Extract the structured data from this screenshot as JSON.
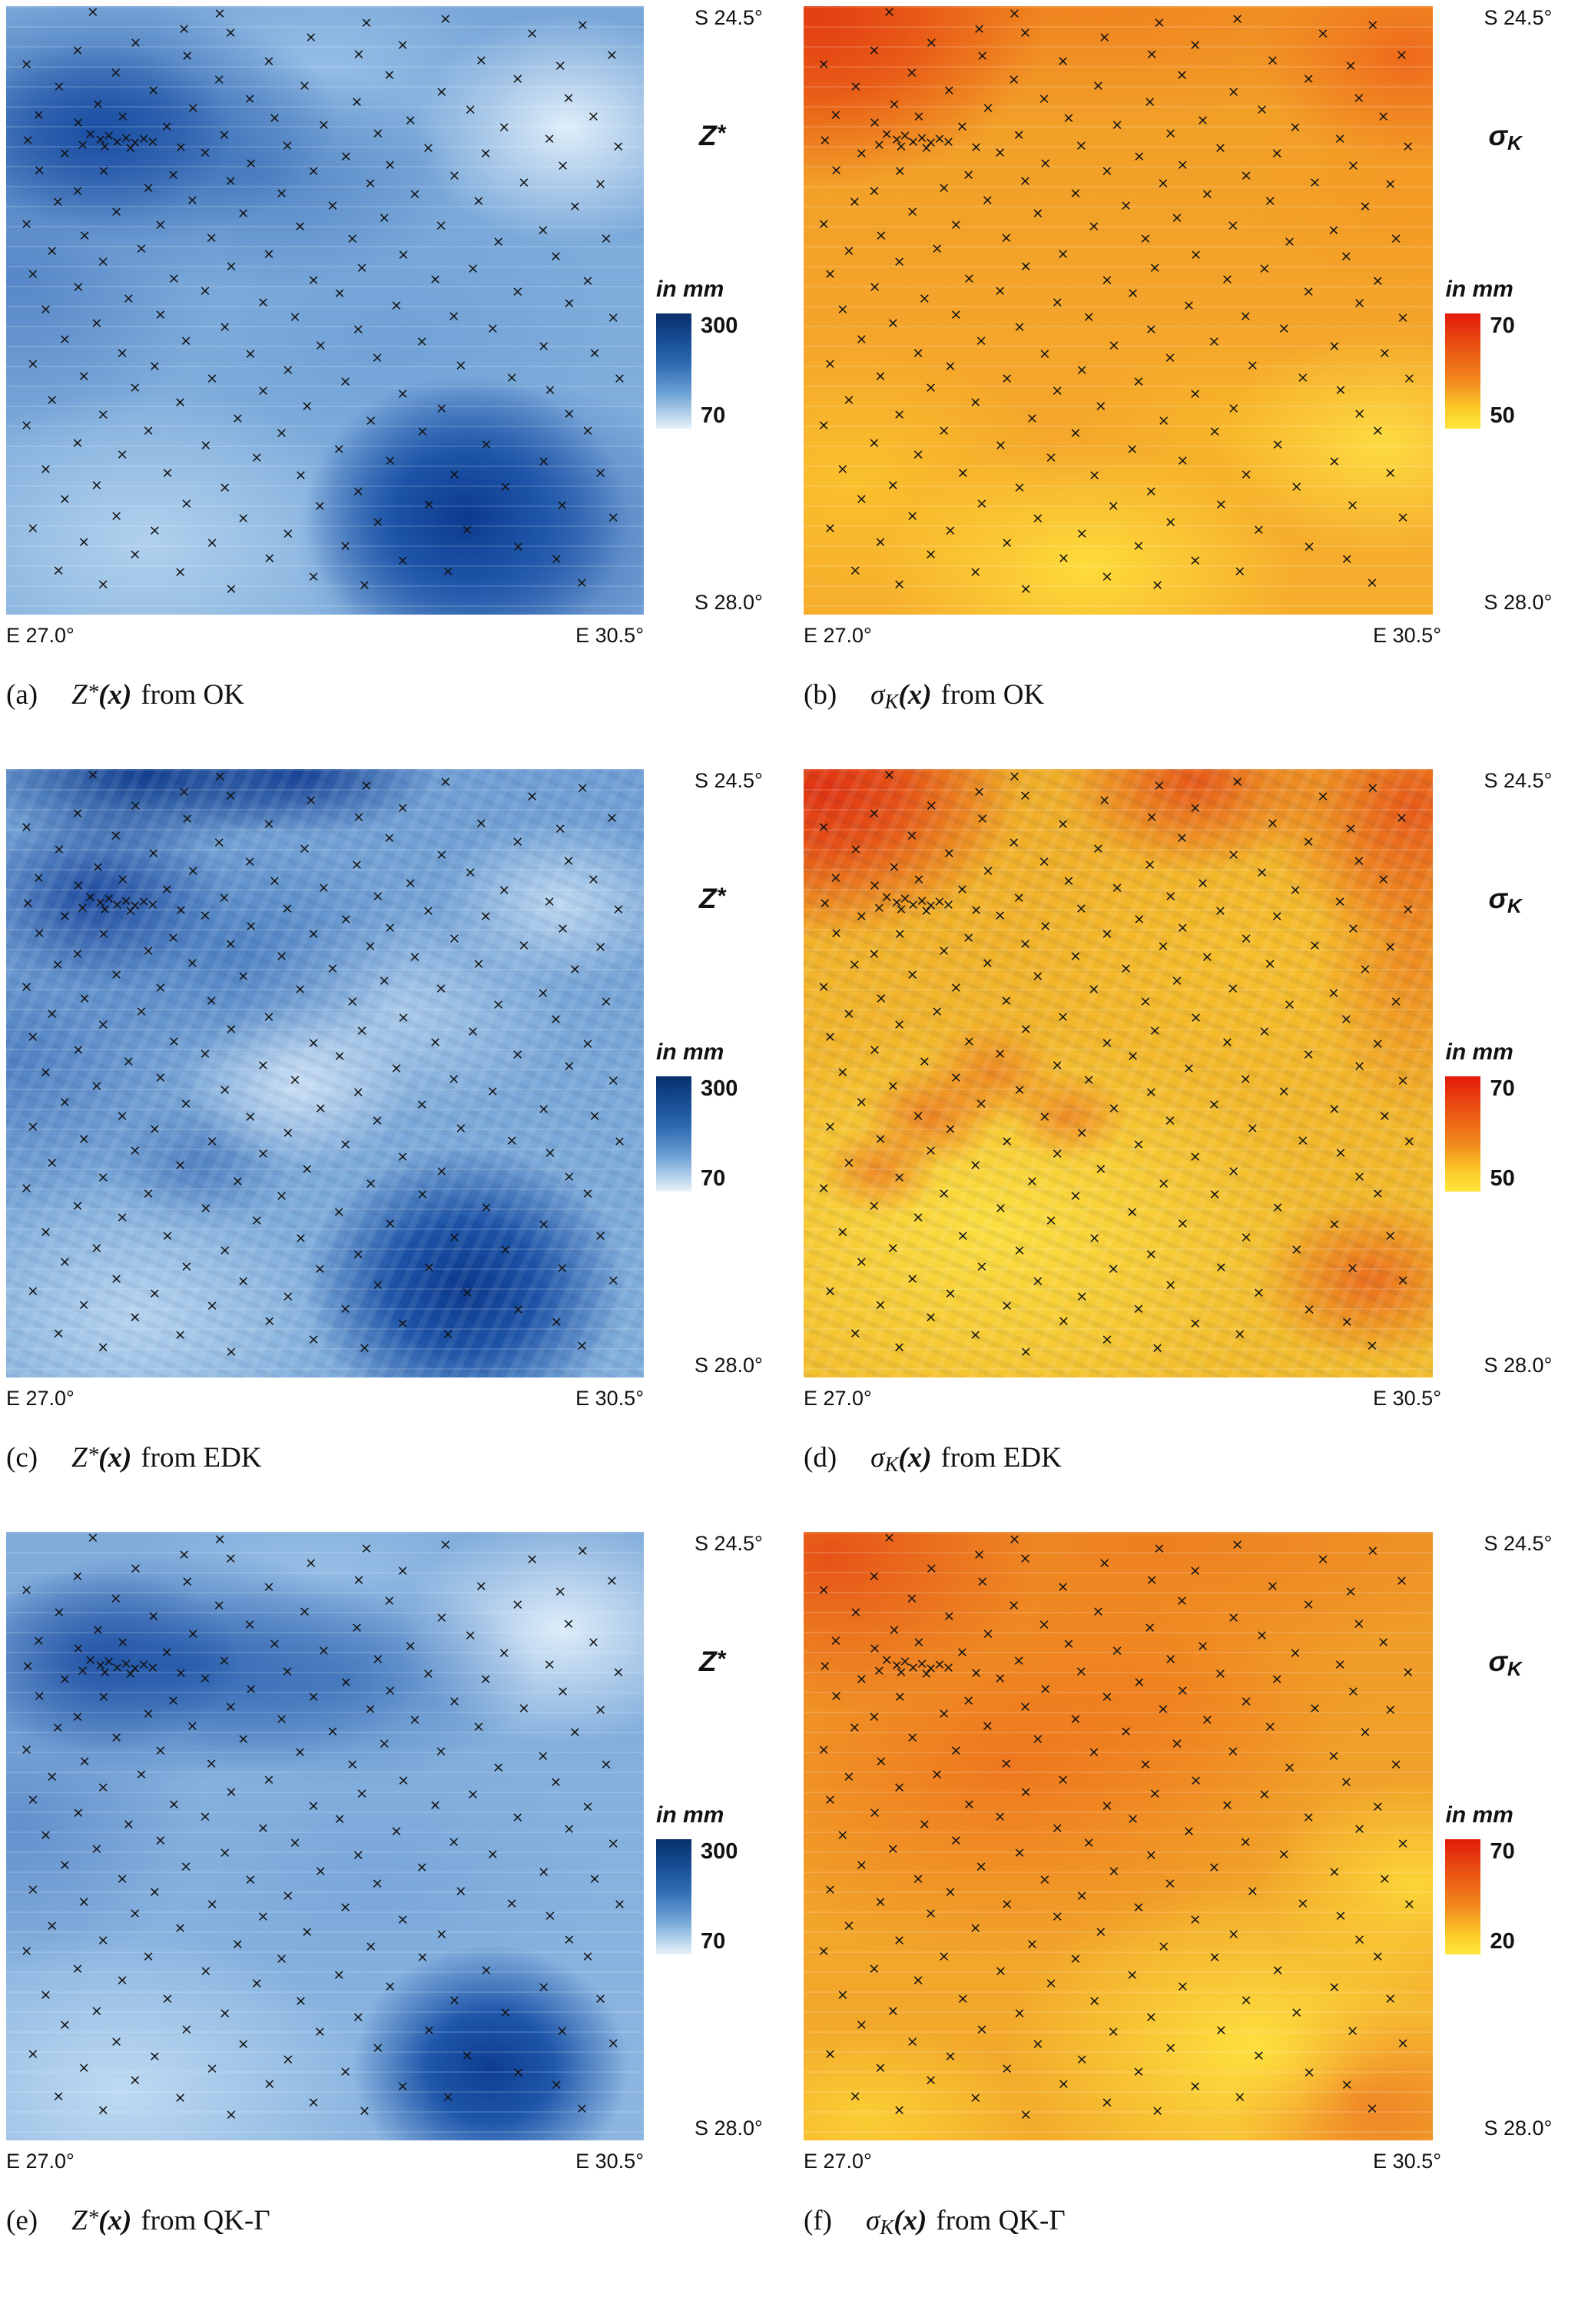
{
  "figure": {
    "panels": [
      {
        "id": "a",
        "lat_top": "S 24.5°",
        "lat_bottom": "S 28.0°",
        "lon_left": "E 27.0°",
        "lon_right": "E 30.5°",
        "field": {
          "base": "Z",
          "sup": "*",
          "sub": ""
        },
        "units": "in mm",
        "cbar_top": "300",
        "cbar_bottom": "70",
        "caption": {
          "index": "(a)",
          "base": "Z",
          "sup": "*",
          "sub": "",
          "arg": "(x)",
          "rest": "from OK"
        }
      },
      {
        "id": "b",
        "lat_top": "S 24.5°",
        "lat_bottom": "S 28.0°",
        "lon_left": "E 27.0°",
        "lon_right": "E 30.5°",
        "field": {
          "base": "σ",
          "sup": "",
          "sub": "K"
        },
        "units": "in mm",
        "cbar_top": "70",
        "cbar_bottom": "50",
        "caption": {
          "index": "(b)",
          "base": "σ",
          "sup": "",
          "sub": "K",
          "arg": "(x)",
          "rest": "from OK"
        }
      },
      {
        "id": "c",
        "lat_top": "S 24.5°",
        "lat_bottom": "S 28.0°",
        "lon_left": "E 27.0°",
        "lon_right": "E 30.5°",
        "field": {
          "base": "Z",
          "sup": "*",
          "sub": ""
        },
        "units": "in mm",
        "cbar_top": "300",
        "cbar_bottom": "70",
        "caption": {
          "index": "(c)",
          "base": "Z",
          "sup": "*",
          "sub": "",
          "arg": "(x)",
          "rest": "from EDK"
        }
      },
      {
        "id": "d",
        "lat_top": "S 24.5°",
        "lat_bottom": "S 28.0°",
        "lon_left": "E 27.0°",
        "lon_right": "E 30.5°",
        "field": {
          "base": "σ",
          "sup": "",
          "sub": "K"
        },
        "units": "in mm",
        "cbar_top": "70",
        "cbar_bottom": "50",
        "caption": {
          "index": "(d)",
          "base": "σ",
          "sup": "",
          "sub": "K",
          "arg": "(x)",
          "rest": "from EDK"
        }
      },
      {
        "id": "e",
        "lat_top": "S 24.5°",
        "lat_bottom": "S 28.0°",
        "lon_left": "E 27.0°",
        "lon_right": "E 30.5°",
        "field": {
          "base": "Z",
          "sup": "*",
          "sub": ""
        },
        "units": "in mm",
        "cbar_top": "300",
        "cbar_bottom": "70",
        "caption": {
          "index": "(e)",
          "base": "Z",
          "sup": "*",
          "sub": "",
          "arg": "(x)",
          "rest": "from QK-Γ"
        }
      },
      {
        "id": "f",
        "lat_top": "S 24.5°",
        "lat_bottom": "S 28.0°",
        "lon_left": "E 27.0°",
        "lon_right": "E 30.5°",
        "field": {
          "base": "σ",
          "sup": "",
          "sub": "K"
        },
        "units": "in mm",
        "cbar_top": "70",
        "cbar_bottom": "20",
        "caption": {
          "index": "(f)",
          "base": "σ",
          "sup": "",
          "sub": "K",
          "arg": "(x)",
          "rest": "from QK-Γ"
        }
      }
    ],
    "markers": [
      [
        13.6,
        1.0
      ],
      [
        33.5,
        1.2
      ],
      [
        56.5,
        2.8
      ],
      [
        68.9,
        2.2
      ],
      [
        82.5,
        4.6
      ],
      [
        27.9,
        3.8
      ],
      [
        35.2,
        4.4
      ],
      [
        47.8,
        5.2
      ],
      [
        20.3,
        6.1
      ],
      [
        62.2,
        6.4
      ],
      [
        90.4,
        3.2
      ],
      [
        11.2,
        7.3
      ],
      [
        28.4,
        8.2
      ],
      [
        55.3,
        8.0
      ],
      [
        41.2,
        9.1
      ],
      [
        74.5,
        9.0
      ],
      [
        95.0,
        8.1
      ],
      [
        3.2,
        9.6
      ],
      [
        86.9,
        9.9
      ],
      [
        17.2,
        11.0
      ],
      [
        33.4,
        12.1
      ],
      [
        60.1,
        11.4
      ],
      [
        80.2,
        12.0
      ],
      [
        8.3,
        13.2
      ],
      [
        23.1,
        13.9
      ],
      [
        46.8,
        13.1
      ],
      [
        68.3,
        14.2
      ],
      [
        38.2,
        15.3
      ],
      [
        55.0,
        15.8
      ],
      [
        88.2,
        15.1
      ],
      [
        14.4,
        16.2
      ],
      [
        29.3,
        16.8
      ],
      [
        72.8,
        17.1
      ],
      [
        5.1,
        17.9
      ],
      [
        18.3,
        18.2
      ],
      [
        42.1,
        18.4
      ],
      [
        63.4,
        18.8
      ],
      [
        92.1,
        18.2
      ],
      [
        11.3,
        19.2
      ],
      [
        25.2,
        19.8
      ],
      [
        49.8,
        19.6
      ],
      [
        78.1,
        19.9
      ],
      [
        13.2,
        21.1
      ],
      [
        14.8,
        22.0
      ],
      [
        16.1,
        21.4
      ],
      [
        17.4,
        22.3
      ],
      [
        18.8,
        21.7
      ],
      [
        20.2,
        22.5
      ],
      [
        21.6,
        21.9
      ],
      [
        23.0,
        22.4
      ],
      [
        15.5,
        23.1
      ],
      [
        19.5,
        23.3
      ],
      [
        12.0,
        22.8
      ],
      [
        34.2,
        21.2
      ],
      [
        58.3,
        21.0
      ],
      [
        85.2,
        21.8
      ],
      [
        3.4,
        22.1
      ],
      [
        27.4,
        23.2
      ],
      [
        44.1,
        23.0
      ],
      [
        66.2,
        23.4
      ],
      [
        96.0,
        23.1
      ],
      [
        9.2,
        24.3
      ],
      [
        31.2,
        24.1
      ],
      [
        53.3,
        24.8
      ],
      [
        75.2,
        24.2
      ],
      [
        38.4,
        25.9
      ],
      [
        60.2,
        26.1
      ],
      [
        87.3,
        26.2
      ],
      [
        5.2,
        27.0
      ],
      [
        15.3,
        27.2
      ],
      [
        26.2,
        27.8
      ],
      [
        48.2,
        27.1
      ],
      [
        70.3,
        27.9
      ],
      [
        35.2,
        28.8
      ],
      [
        57.1,
        29.2
      ],
      [
        81.2,
        29.0
      ],
      [
        93.2,
        29.3
      ],
      [
        22.3,
        29.9
      ],
      [
        11.2,
        30.4
      ],
      [
        43.2,
        30.8
      ],
      [
        64.1,
        30.9
      ],
      [
        8.1,
        32.2
      ],
      [
        29.2,
        32.0
      ],
      [
        51.2,
        32.8
      ],
      [
        74.1,
        32.1
      ],
      [
        89.2,
        32.9
      ],
      [
        17.3,
        33.8
      ],
      [
        37.2,
        34.1
      ],
      [
        59.3,
        34.8
      ],
      [
        3.2,
        35.9
      ],
      [
        24.2,
        36.0
      ],
      [
        46.1,
        36.2
      ],
      [
        68.2,
        36.1
      ],
      [
        84.2,
        36.9
      ],
      [
        12.3,
        37.8
      ],
      [
        32.2,
        38.1
      ],
      [
        54.3,
        38.2
      ],
      [
        77.2,
        38.8
      ],
      [
        94.1,
        38.2
      ],
      [
        21.2,
        39.9
      ],
      [
        7.2,
        40.3
      ],
      [
        41.2,
        40.8
      ],
      [
        62.3,
        40.9
      ],
      [
        86.2,
        41.1
      ],
      [
        15.2,
        42.1
      ],
      [
        35.3,
        42.8
      ],
      [
        55.8,
        43.0
      ],
      [
        73.2,
        43.2
      ],
      [
        4.2,
        44.1
      ],
      [
        26.3,
        44.8
      ],
      [
        48.2,
        45.1
      ],
      [
        67.3,
        45.0
      ],
      [
        91.2,
        45.2
      ],
      [
        11.3,
        46.2
      ],
      [
        31.2,
        46.8
      ],
      [
        52.3,
        47.2
      ],
      [
        80.2,
        47.0
      ],
      [
        19.2,
        48.1
      ],
      [
        40.3,
        48.8
      ],
      [
        61.2,
        49.2
      ],
      [
        88.3,
        48.9
      ],
      [
        6.2,
        49.9
      ],
      [
        24.2,
        50.8
      ],
      [
        45.3,
        51.1
      ],
      [
        70.2,
        51.0
      ],
      [
        95.2,
        51.2
      ],
      [
        14.2,
        52.1
      ],
      [
        34.3,
        52.8
      ],
      [
        55.2,
        53.2
      ],
      [
        76.3,
        53.0
      ],
      [
        9.2,
        54.8
      ],
      [
        28.2,
        55.1
      ],
      [
        49.3,
        55.8
      ],
      [
        65.2,
        55.2
      ],
      [
        84.3,
        55.9
      ],
      [
        18.2,
        57.1
      ],
      [
        38.3,
        57.2
      ],
      [
        58.2,
        57.8
      ],
      [
        92.3,
        57.1
      ],
      [
        4.2,
        58.8
      ],
      [
        23.3,
        59.2
      ],
      [
        44.2,
        59.8
      ],
      [
        71.3,
        59.1
      ],
      [
        12.2,
        60.8
      ],
      [
        32.3,
        61.2
      ],
      [
        53.2,
        61.8
      ],
      [
        79.3,
        61.1
      ],
      [
        96.2,
        61.2
      ],
      [
        20.2,
        62.8
      ],
      [
        40.3,
        63.2
      ],
      [
        62.2,
        63.8
      ],
      [
        85.3,
        63.1
      ],
      [
        7.2,
        64.8
      ],
      [
        27.3,
        65.2
      ],
      [
        47.2,
        65.8
      ],
      [
        68.3,
        66.1
      ],
      [
        15.2,
        67.2
      ],
      [
        36.3,
        67.8
      ],
      [
        57.2,
        68.2
      ],
      [
        88.3,
        67.1
      ],
      [
        3.2,
        68.9
      ],
      [
        22.3,
        69.8
      ],
      [
        43.2,
        70.2
      ],
      [
        65.3,
        69.9
      ],
      [
        91.2,
        69.8
      ],
      [
        11.2,
        71.8
      ],
      [
        31.3,
        72.2
      ],
      [
        52.2,
        72.8
      ],
      [
        75.3,
        72.1
      ],
      [
        18.2,
        73.8
      ],
      [
        39.3,
        74.2
      ],
      [
        60.2,
        74.8
      ],
      [
        84.3,
        74.9
      ],
      [
        6.2,
        76.1
      ],
      [
        25.3,
        76.8
      ],
      [
        46.2,
        77.2
      ],
      [
        70.3,
        77.0
      ],
      [
        93.2,
        76.8
      ],
      [
        14.2,
        78.8
      ],
      [
        34.3,
        79.2
      ],
      [
        55.2,
        79.8
      ],
      [
        78.3,
        79.1
      ],
      [
        9.2,
        81.1
      ],
      [
        28.3,
        81.8
      ],
      [
        49.2,
        82.2
      ],
      [
        66.3,
        82.0
      ],
      [
        87.2,
        82.1
      ],
      [
        17.3,
        83.8
      ],
      [
        37.2,
        84.2
      ],
      [
        58.3,
        84.8
      ],
      [
        95.2,
        84.1
      ],
      [
        4.2,
        85.9
      ],
      [
        23.3,
        86.2
      ],
      [
        44.2,
        86.8
      ],
      [
        72.3,
        86.1
      ],
      [
        12.2,
        88.1
      ],
      [
        32.3,
        88.2
      ],
      [
        53.2,
        88.8
      ],
      [
        80.3,
        88.9
      ],
      [
        20.2,
        90.2
      ],
      [
        41.3,
        90.8
      ],
      [
        62.2,
        91.2
      ],
      [
        86.3,
        90.9
      ],
      [
        8.2,
        92.8
      ],
      [
        27.3,
        93.1
      ],
      [
        48.2,
        93.8
      ],
      [
        69.3,
        92.9
      ],
      [
        15.2,
        95.1
      ],
      [
        35.3,
        95.8
      ],
      [
        56.2,
        95.2
      ],
      [
        90.3,
        94.8
      ]
    ]
  },
  "colors": {
    "blue_high": "#08306b",
    "blue_low": "#e7f2fb",
    "hot_high": "#e21a0a",
    "hot_low": "#ffe73c",
    "marker": "#121212"
  },
  "chart_data": [
    {
      "type": "heatmap",
      "panel": "(a)",
      "title": "Z*(x) from OK",
      "quantity": "kriging estimate Z*",
      "method": "OK",
      "units": "mm",
      "x_axis": {
        "min": "E 27.0°",
        "max": "E 30.5°"
      },
      "y_axis": {
        "top": "S 24.5°",
        "bottom": "S 28.0°"
      },
      "color_scale": {
        "min": 70,
        "max": 300,
        "low_color": "#e7f2fb",
        "high_color": "#08306b"
      },
      "overlay": "rain-gauge stations as × markers (~210)",
      "pattern": "smooth blue field; high values (dark) at bottom-right blob and upper-left band; light lows near top-right and bottom-left"
    },
    {
      "type": "heatmap",
      "panel": "(b)",
      "title": "σK(x) from OK",
      "quantity": "kriging standard deviation σK",
      "method": "OK",
      "units": "mm",
      "x_axis": {
        "min": "E 27.0°",
        "max": "E 30.5°"
      },
      "y_axis": {
        "top": "S 24.5°",
        "bottom": "S 28.0°"
      },
      "color_scale": {
        "min": 50,
        "max": 70,
        "low_color": "#ffe73c",
        "high_color": "#e21a0a"
      },
      "overlay": "rain-gauge stations as × markers (~210)",
      "pattern": "smooth orange field; highest (red) in top-left corner and upper edge; lowest (yellow) patches near bottom center and right"
    },
    {
      "type": "heatmap",
      "panel": "(c)",
      "title": "Z*(x) from EDK",
      "quantity": "kriging estimate Z*",
      "method": "EDK",
      "units": "mm",
      "x_axis": {
        "min": "E 27.0°",
        "max": "E 30.5°"
      },
      "y_axis": {
        "top": "S 24.5°",
        "bottom": "S 28.0°"
      },
      "color_scale": {
        "min": 70,
        "max": 300,
        "low_color": "#e7f2fb",
        "high_color": "#08306b"
      },
      "overlay": "rain-gauge stations as × markers (~210)",
      "pattern": "textured blue field with fine structure; dark patches along top edge and bottom-right blob; light streaks mid-map and bottom-left"
    },
    {
      "type": "heatmap",
      "panel": "(d)",
      "title": "σK(x) from EDK",
      "quantity": "kriging standard deviation σK",
      "method": "EDK",
      "units": "mm",
      "x_axis": {
        "min": "E 27.0°",
        "max": "E 30.5°"
      },
      "y_axis": {
        "top": "S 24.5°",
        "bottom": "S 28.0°"
      },
      "color_scale": {
        "min": 50,
        "max": 70,
        "low_color": "#ffe73c",
        "high_color": "#e21a0a"
      },
      "overlay": "rain-gauge stations as × markers (~210)",
      "pattern": "mottled yellow-orange field; red corners top-left/top-right, scattered red speckles left-center, red patch bottom-right"
    },
    {
      "type": "heatmap",
      "panel": "(e)",
      "title": "Z*(x) from QK-Γ",
      "quantity": "kriging estimate Z*",
      "method": "QK-Γ",
      "units": "mm",
      "x_axis": {
        "min": "E 27.0°",
        "max": "E 30.5°"
      },
      "y_axis": {
        "top": "S 24.5°",
        "bottom": "S 28.0°"
      },
      "color_scale": {
        "min": 70,
        "max": 300,
        "low_color": "#e7f2fb",
        "high_color": "#08306b"
      },
      "overlay": "rain-gauge stations as × markers (~210)",
      "pattern": "smooth blue field similar to OK; dark band upper-middle-left, smaller dark bottom-right blob, light top-right and bottom-left"
    },
    {
      "type": "heatmap",
      "panel": "(f)",
      "title": "σK(x) from QK-Γ",
      "quantity": "kriging standard deviation σK",
      "method": "QK-Γ",
      "units": "mm",
      "x_axis": {
        "min": "E 27.0°",
        "max": "E 30.5°"
      },
      "y_axis": {
        "top": "S 24.5°",
        "bottom": "S 28.0°"
      },
      "color_scale": {
        "min": 20,
        "max": 70,
        "low_color": "#ffe73c",
        "high_color": "#e21a0a"
      },
      "overlay": "rain-gauge stations as × markers (~210)",
      "pattern": "orange field; darker orange-red region center-left and top-left; yellow lows bottom-center-right with a red blob at bottom-right corner"
    }
  ]
}
